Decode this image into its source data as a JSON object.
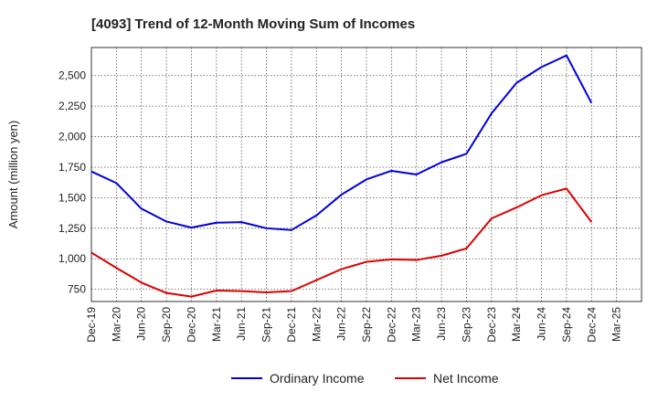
{
  "chart_data": {
    "type": "line",
    "title": "[4093]  Trend of 12-Month Moving Sum of Incomes",
    "xlabel": "",
    "ylabel": "Amount (million yen)",
    "ylim": [
      650,
      2730
    ],
    "yticks": [
      750,
      1000,
      1250,
      1500,
      1750,
      2000,
      2250,
      2500
    ],
    "ytick_labels": [
      "750",
      "1,000",
      "1,250",
      "1,500",
      "1,750",
      "2,000",
      "2,250",
      "2,500"
    ],
    "categories": [
      "Dec-19",
      "Mar-20",
      "Jun-20",
      "Sep-20",
      "Dec-20",
      "Mar-21",
      "Jun-21",
      "Sep-21",
      "Dec-21",
      "Mar-22",
      "Jun-22",
      "Sep-22",
      "Dec-22",
      "Mar-23",
      "Jun-23",
      "Sep-23",
      "Dec-23",
      "Mar-24",
      "Jun-24",
      "Sep-24",
      "Dec-24",
      "Mar-25"
    ],
    "grid": true,
    "legend_position": "bottom-center",
    "series": [
      {
        "name": "Ordinary Income",
        "color": "#0000dd",
        "values": [
          1715,
          1620,
          1410,
          1305,
          1255,
          1295,
          1300,
          1250,
          1235,
          1355,
          1525,
          1650,
          1720,
          1690,
          1790,
          1860,
          2190,
          2440,
          2570,
          2665,
          2275,
          null
        ]
      },
      {
        "name": "Net Income",
        "color": "#dd0000",
        "values": [
          1050,
          925,
          805,
          720,
          690,
          740,
          735,
          725,
          735,
          825,
          915,
          975,
          995,
          990,
          1025,
          1085,
          1330,
          1420,
          1520,
          1575,
          1300,
          null
        ]
      }
    ]
  }
}
